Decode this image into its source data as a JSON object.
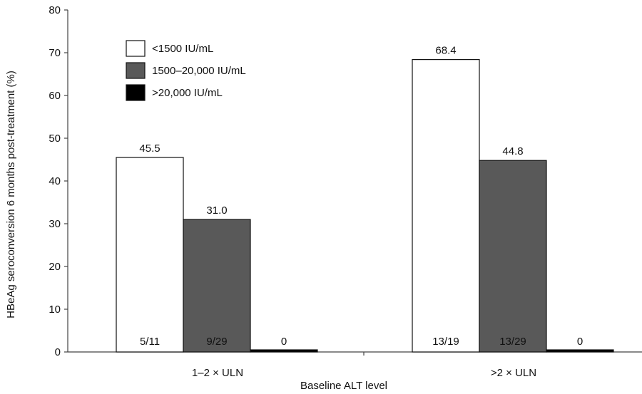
{
  "chart_data": {
    "type": "bar",
    "title": "",
    "xlabel": "Baseline ALT level",
    "ylabel": "HBeAg seroconversion 6 months post-treatment (%)",
    "ylim": [
      0,
      80
    ],
    "yticks": [
      0,
      10,
      20,
      30,
      40,
      50,
      60,
      70,
      80
    ],
    "categories": [
      "1–2 × ULN",
      ">2 × ULN"
    ],
    "series": [
      {
        "name": "<1500 IU/mL",
        "color": "#ffffff",
        "values": [
          45.5,
          68.4
        ],
        "value_labels": [
          "45.5",
          "68.4"
        ],
        "count_labels": [
          "5/11",
          "13/19"
        ]
      },
      {
        "name": "1500–20,000 IU/mL",
        "color": "#595959",
        "values": [
          31.0,
          44.8
        ],
        "value_labels": [
          "31.0",
          "44.8"
        ],
        "count_labels": [
          "9/29",
          "13/29"
        ]
      },
      {
        "name": ">20,000 IU/mL",
        "color": "#000000",
        "values": [
          0,
          0
        ],
        "value_labels": [
          "",
          ""
        ],
        "count_labels": [
          "0",
          "0"
        ]
      }
    ],
    "legend_position": "top-left",
    "grid": false
  }
}
